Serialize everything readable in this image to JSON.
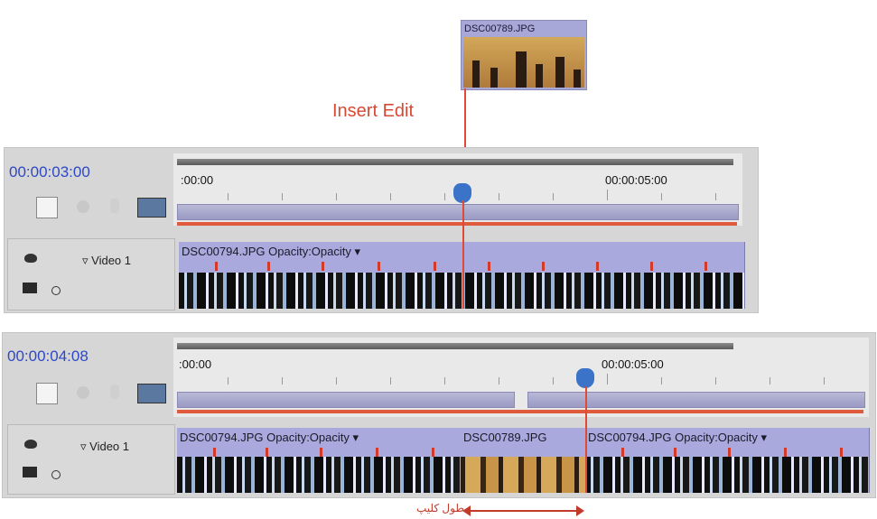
{
  "drag_clip": {
    "name": "DSC00789.JPG"
  },
  "annotation": {
    "insert_label": "Insert Edit",
    "duration_label": "طول کلیپ"
  },
  "timeline_before": {
    "timecode": "00:00:03:00",
    "ruler_start": ":00:00",
    "ruler_mark": "00:00:05:00",
    "track_name": "Video 1",
    "clips": [
      {
        "name": "DSC00794.JPG",
        "effect": "Opacity:Opacity ▾"
      }
    ]
  },
  "timeline_after": {
    "timecode": "00:00:04:08",
    "ruler_start": ":00:00",
    "ruler_mark": "00:00:05:00",
    "track_name": "Video 1",
    "clips": [
      {
        "name": "DSC00794.JPG",
        "effect": "Opacity:Opacity ▾"
      },
      {
        "name": "DSC00789.JPG",
        "effect": ""
      },
      {
        "name": "DSC00794.JPG",
        "effect": "Opacity:Opacity ▾"
      }
    ]
  },
  "colors": {
    "timecode": "#2d48c6",
    "playhead": "#3b73c8",
    "edit_line": "#e04a34",
    "clip": "#a9a9dd"
  }
}
